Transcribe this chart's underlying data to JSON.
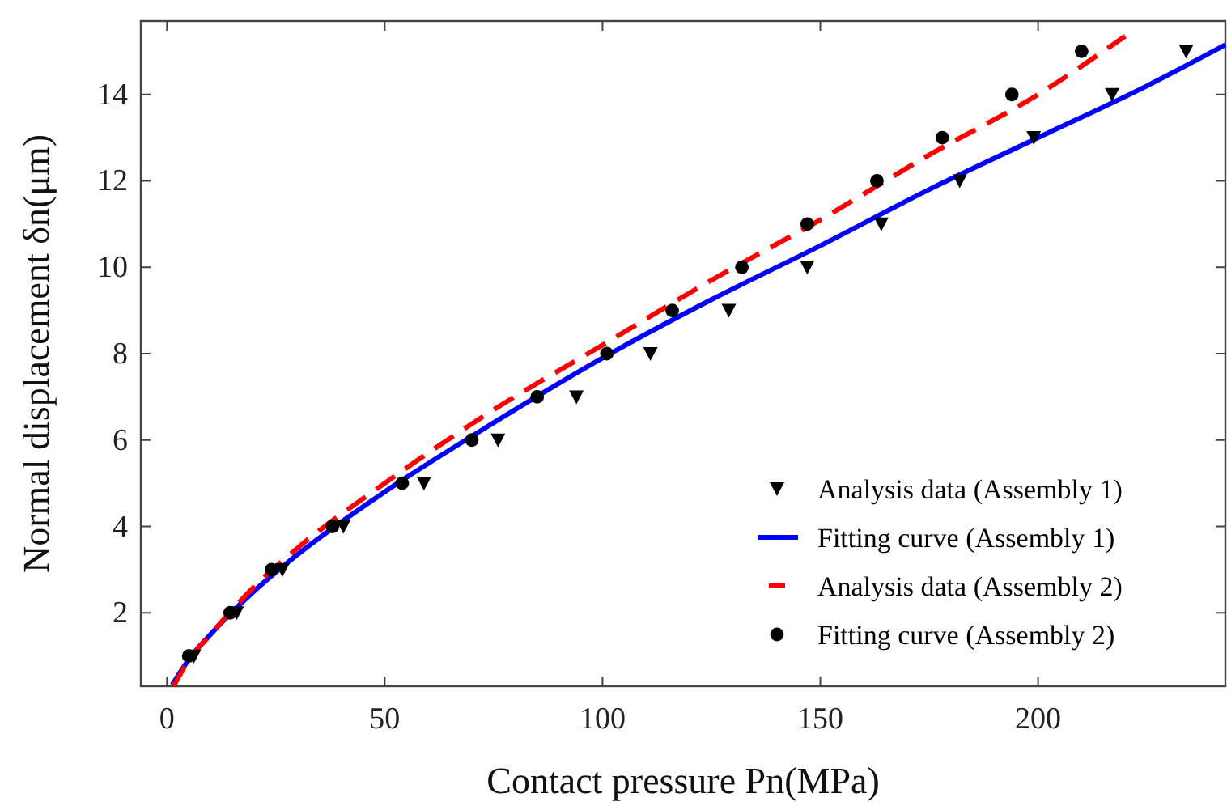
{
  "chart_data": {
    "type": "scatter",
    "xlabel": "Contact pressure Pn(MPa)",
    "ylabel": "Normal displacement δn(μm)",
    "xlim": [
      -6,
      243
    ],
    "xticks": [
      0,
      50,
      100,
      150,
      200
    ],
    "ylim": [
      0.3,
      15.7
    ],
    "yticks": [
      2,
      4,
      6,
      8,
      10,
      12,
      14
    ],
    "grid": false,
    "legend": "bottom right",
    "series": [
      {
        "name": "Analysis data (Assembly 1)",
        "marker": "triangle",
        "color": "#000000",
        "x": [
          6.2,
          16,
          26.5,
          40.5,
          59,
          76,
          94,
          111,
          129,
          147,
          164,
          182,
          199,
          217,
          234
        ],
        "values": [
          1,
          2,
          3,
          4,
          5,
          6,
          7,
          8,
          9,
          10,
          11,
          12,
          13,
          14,
          15
        ]
      },
      {
        "name": "Fitting curve (Assembly 1)",
        "type": "line",
        "line_style": "solid",
        "color": "#0000ff",
        "x": [
          1.2,
          5,
          10,
          20,
          30,
          50,
          75,
          100,
          125,
          150,
          175,
          200,
          225,
          243
        ],
        "values": [
          0.33,
          0.92,
          1.5,
          2.5,
          3.35,
          4.8,
          6.4,
          7.9,
          9.25,
          10.5,
          11.8,
          13.0,
          14.2,
          15.15
        ]
      },
      {
        "name": "Analysis data (Assembly 2)",
        "type": "line",
        "line_style": "dashed",
        "color": "#ff0000",
        "x": [
          1.5,
          5,
          10,
          20,
          30,
          50,
          75,
          100,
          125,
          150,
          175,
          200,
          220
        ],
        "values": [
          0.3,
          0.9,
          1.5,
          2.6,
          3.5,
          5.0,
          6.7,
          8.2,
          9.7,
          11.1,
          12.6,
          14.0,
          15.35
        ]
      },
      {
        "name": "Fitting curve (Assembly 2)",
        "marker": "circle",
        "color": "#000000",
        "x": [
          5,
          14.5,
          24,
          38,
          54,
          70,
          85,
          101,
          116,
          132,
          147,
          163,
          178,
          194,
          210
        ],
        "values": [
          1,
          2,
          3,
          4,
          5,
          6,
          7,
          8,
          9,
          10,
          11,
          12,
          13,
          14,
          15
        ]
      }
    ]
  }
}
